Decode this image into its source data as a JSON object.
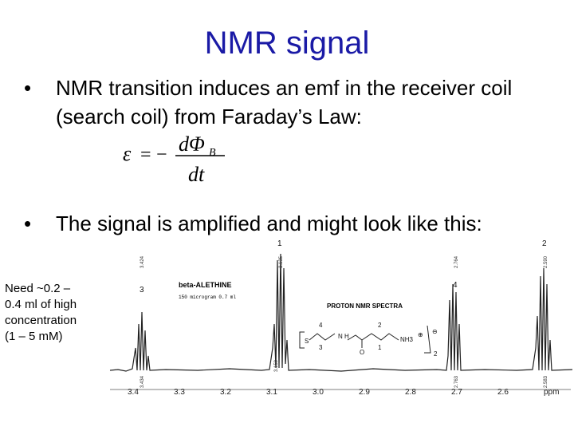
{
  "slide": {
    "title": "NMR signal",
    "bullets": [
      "NMR transition induces an emf in the receiver coil (search coil) from Faraday’s Law:",
      "The signal is amplified and might look like this:"
    ],
    "bullet_glyph": "•",
    "side_note": [
      "Need ~0.2 –",
      "0.4 ml of high",
      "concentration",
      "(1 – 5 mM)"
    ],
    "equation": {
      "lhs": "ε",
      "eq": "=",
      "minus": "−",
      "numerator": "dΦ",
      "subscript": "B",
      "denominator": "dt"
    },
    "colors": {
      "title": "#1a1aa6"
    }
  },
  "spectrum": {
    "compound": "beta-ALETHINE",
    "concentration_note": "150 microgram 0.7 ml",
    "heading": "PROTON NMR SPECTRA",
    "axis_unit": "ppm",
    "axis_ticks": [
      "3.4",
      "3.3",
      "3.2",
      "3.1",
      "3.0",
      "2.9",
      "2.8",
      "2.7",
      "2.6"
    ],
    "peak_numbers": [
      "3",
      "1",
      "4",
      "2"
    ],
    "peak_shift_labels": [
      "3.424",
      "3.135",
      "2.764",
      "2.590",
      "3.434",
      "3.150",
      "2.763",
      "2.583"
    ],
    "structure_labels": {
      "n1": "N",
      "h1": "H",
      "o": "O",
      "nh3": "NH3",
      "plus": "⊕",
      "anion": "⊖",
      "s": "S",
      "sub": "2",
      "g1": "4",
      "g2": "3",
      "g3": "1",
      "g4": "2"
    }
  }
}
